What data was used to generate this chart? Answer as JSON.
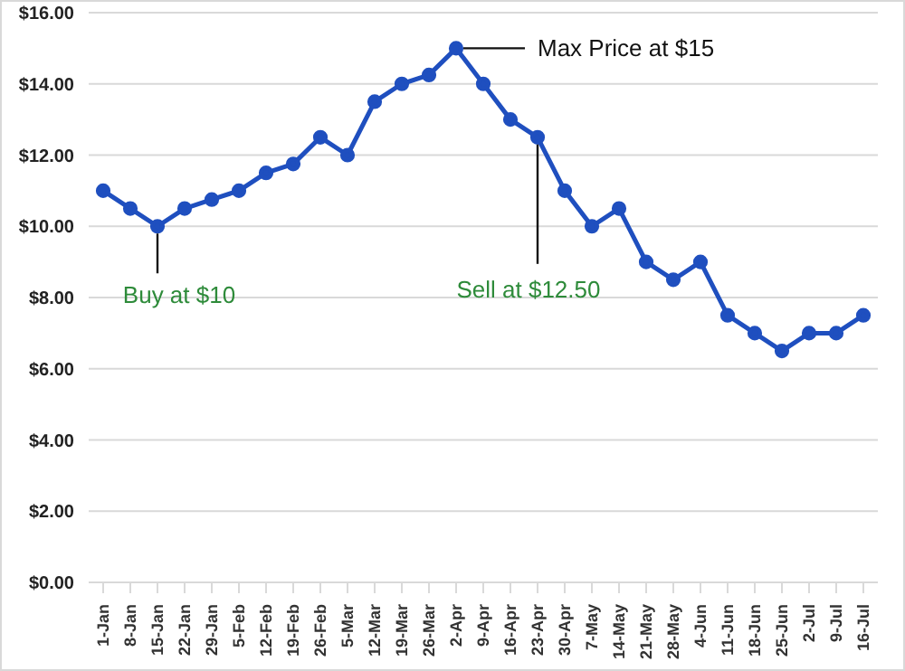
{
  "chart_data": {
    "type": "line",
    "categories": [
      "1-Jan",
      "8-Jan",
      "15-Jan",
      "22-Jan",
      "29-Jan",
      "5-Feb",
      "12-Feb",
      "19-Feb",
      "26-Feb",
      "5-Mar",
      "12-Mar",
      "19-Mar",
      "26-Mar",
      "2-Apr",
      "9-Apr",
      "16-Apr",
      "23-Apr",
      "30-Apr",
      "7-May",
      "14-May",
      "21-May",
      "28-May",
      "4-Jun",
      "11-Jun",
      "18-Jun",
      "25-Jun",
      "2-Jul",
      "9-Jul",
      "16-Jul"
    ],
    "series": [
      {
        "color": "#1f4fbf",
        "values": [
          11,
          10.5,
          10,
          10.5,
          10.75,
          11,
          11.5,
          11.75,
          12.5,
          12,
          13.5,
          14,
          14.25,
          15,
          14,
          13,
          12.5,
          11,
          10,
          10.5,
          9,
          8.5,
          9,
          7.5,
          7,
          6.5,
          7,
          7,
          7.5
        ]
      }
    ],
    "ylim": [
      0,
      16
    ],
    "yticks": [
      {
        "value": 0,
        "label": "$0.00"
      },
      {
        "value": 2,
        "label": "$2.00"
      },
      {
        "value": 4,
        "label": "$4.00"
      },
      {
        "value": 6,
        "label": "$6.00"
      },
      {
        "value": 8,
        "label": "$8.00"
      },
      {
        "value": 10,
        "label": "$10.00"
      },
      {
        "value": 12,
        "label": "$12.00"
      },
      {
        "value": 14,
        "label": "$14.00"
      },
      {
        "value": 16,
        "label": "$16.00"
      }
    ],
    "grid": "y",
    "marker": "circle",
    "line_style": "solid",
    "legend": false,
    "annotations": [
      {
        "text": "Buy at $10",
        "x": "15-Jan",
        "y": 10
      },
      {
        "text": "Max Price at $15",
        "x": "2-Apr",
        "y": 15
      },
      {
        "text": "Sell at $12.50",
        "x": "23-Apr",
        "y": 12.5
      }
    ]
  }
}
